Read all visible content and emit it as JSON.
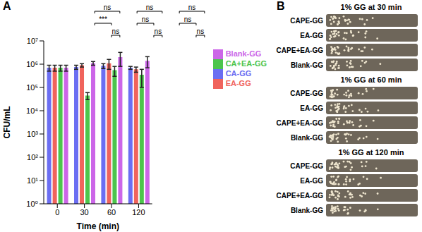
{
  "chart_data": {
    "type": "bar",
    "panel": "A",
    "x_label": "Time (min)",
    "y_label": "CFU/mL",
    "categories": [
      "0",
      "30",
      "60",
      "120"
    ],
    "log": "y",
    "ylim": [
      1,
      10000000
    ],
    "yticks": [
      {
        "value": 1,
        "label": "10⁰"
      },
      {
        "value": 10,
        "label": "10¹"
      },
      {
        "value": 100,
        "label": "10²"
      },
      {
        "value": 1000,
        "label": "10³"
      },
      {
        "value": 10000,
        "label": "10⁴"
      },
      {
        "value": 100000,
        "label": "10⁵"
      },
      {
        "value": 1000000,
        "label": "10⁶"
      },
      {
        "value": 10000000,
        "label": "10⁷"
      }
    ],
    "legend": "right",
    "series": [
      {
        "name": "CA-GG",
        "color": "#6b6ef2",
        "values": [
          700000,
          750000,
          850000,
          700000
        ],
        "errors": [
          200000,
          150000,
          200000,
          100000
        ]
      },
      {
        "name": "EA-GG",
        "color": "#f0635c",
        "values": [
          700000,
          900000,
          1100000,
          600000
        ],
        "errors": [
          200000,
          150000,
          500000,
          150000
        ]
      },
      {
        "name": "CA+EA-GG",
        "color": "#4cc54c",
        "values": [
          700000,
          45000,
          550000,
          350000
        ],
        "errors": [
          200000,
          15000,
          250000,
          250000
        ]
      },
      {
        "name": "Blank-GG",
        "color": "#cc66e8",
        "values": [
          700000,
          1100000,
          2000000,
          1400000
        ],
        "errors": [
          200000,
          200000,
          1200000,
          700000
        ]
      }
    ],
    "annotations": [
      {
        "category": "30",
        "labels": [
          "ns",
          "***",
          "ns"
        ]
      },
      {
        "category": "60",
        "labels": [
          "ns",
          "ns",
          "ns"
        ]
      },
      {
        "category": "120",
        "labels": [
          "ns",
          "ns",
          "ns"
        ]
      }
    ]
  },
  "image_panel": {
    "panel": "B",
    "blocks": [
      {
        "title": "1% GG at 30 min",
        "rows": [
          "CAPE-GG",
          "EA-GG",
          "CAPE+EA-GG",
          "Blank-GG"
        ]
      },
      {
        "title": "1% GG at 60 min",
        "rows": [
          "CAPE-GG",
          "EA-GG",
          "CAPE+EA-GG",
          "Blank-GG"
        ]
      },
      {
        "title": "1% GG at 120 min",
        "rows": [
          "CAPE-GG",
          "EA-GG",
          "CAPE+EA-GG",
          "Blank-GG"
        ]
      }
    ]
  }
}
